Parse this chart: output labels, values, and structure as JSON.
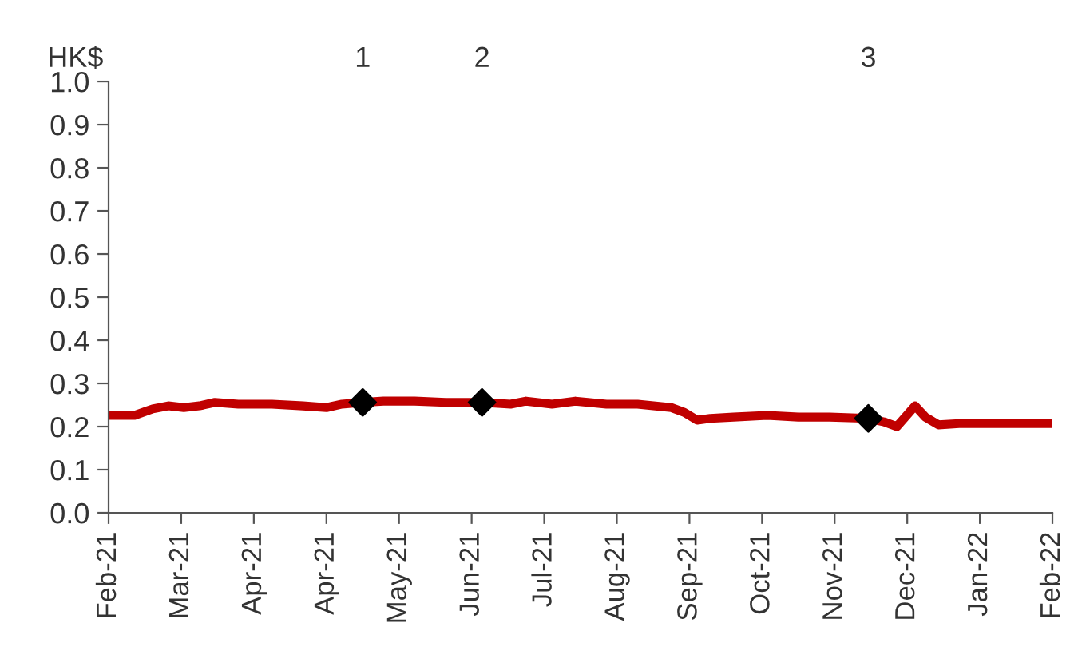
{
  "chart_data": {
    "type": "line",
    "ylabel": "HK$",
    "series": [
      {
        "color": "#c00000",
        "marker": "none",
        "x": [
          "2021-02-05",
          "2021-02-15",
          "2021-02-22",
          "2021-02-28",
          "2021-03-06",
          "2021-03-12",
          "2021-03-18",
          "2021-03-27",
          "2021-04-09",
          "2021-04-21",
          "2021-04-30",
          "2021-05-06",
          "2021-05-14",
          "2021-05-22",
          "2021-06-03",
          "2021-06-15",
          "2021-06-29",
          "2021-07-10",
          "2021-07-16",
          "2021-07-26",
          "2021-08-04",
          "2021-08-16",
          "2021-08-28",
          "2021-09-10",
          "2021-09-15",
          "2021-09-20",
          "2021-09-25",
          "2021-10-04",
          "2021-10-17",
          "2021-10-29",
          "2021-11-10",
          "2021-11-25",
          "2021-12-01",
          "2021-12-06",
          "2021-12-13",
          "2021-12-17",
          "2021-12-22",
          "2021-12-30",
          "2022-01-11",
          "2022-01-23",
          "2022-02-04"
        ],
        "values": [
          0.226,
          0.226,
          0.241,
          0.248,
          0.244,
          0.248,
          0.256,
          0.252,
          0.252,
          0.248,
          0.244,
          0.252,
          0.256,
          0.259,
          0.259,
          0.256,
          0.256,
          0.252,
          0.259,
          0.252,
          0.259,
          0.252,
          0.252,
          0.244,
          0.233,
          0.215,
          0.219,
          0.222,
          0.226,
          0.222,
          0.222,
          0.219,
          0.211,
          0.2,
          0.248,
          0.222,
          0.204,
          0.207,
          0.207,
          0.207,
          0.207
        ]
      },
      {
        "type": "scatter",
        "color": "#000000",
        "marker": "diamond",
        "x": [
          "2021-05-14",
          "2021-06-29",
          "2021-11-25"
        ],
        "values": [
          0.256,
          0.256,
          0.219
        ]
      }
    ],
    "annotations": [
      "1",
      "2",
      "3"
    ],
    "xlim": [
      "2021-02-05",
      "2022-02-04"
    ],
    "xticks": [
      {
        "value": "2021-02-05",
        "label": "Feb-21"
      },
      {
        "value": "2021-03-05",
        "label": "Mar-21"
      },
      {
        "value": "2021-04-02",
        "label": "Apr-21"
      },
      {
        "value": "2021-04-30",
        "label": "Apr-21"
      },
      {
        "value": "2021-05-28",
        "label": "May-21"
      },
      {
        "value": "2021-06-25",
        "label": "Jun-21"
      },
      {
        "value": "2021-07-23",
        "label": "Jul-21"
      },
      {
        "value": "2021-08-20",
        "label": "Aug-21"
      },
      {
        "value": "2021-09-17",
        "label": "Sep-21"
      },
      {
        "value": "2021-10-15",
        "label": "Oct-21"
      },
      {
        "value": "2021-11-12",
        "label": "Nov-21"
      },
      {
        "value": "2021-12-10",
        "label": "Dec-21"
      },
      {
        "value": "2022-01-07",
        "label": "Jan-22"
      },
      {
        "value": "2022-02-04",
        "label": "Feb-22"
      }
    ],
    "ylim": [
      0,
      1
    ],
    "yticks": [
      {
        "value": 0,
        "label": "0.0"
      },
      {
        "value": 0.1,
        "label": "0.1"
      },
      {
        "value": 0.2,
        "label": "0.2"
      },
      {
        "value": 0.3,
        "label": "0.3"
      },
      {
        "value": 0.4,
        "label": "0.4"
      },
      {
        "value": 0.5,
        "label": "0.5"
      },
      {
        "value": 0.6,
        "label": "0.6"
      },
      {
        "value": 0.7,
        "label": "0.7"
      },
      {
        "value": 0.8,
        "label": "0.8"
      },
      {
        "value": 0.9,
        "label": "0.9"
      },
      {
        "value": 1,
        "label": "1.0"
      }
    ],
    "grid": false,
    "legend": false
  }
}
